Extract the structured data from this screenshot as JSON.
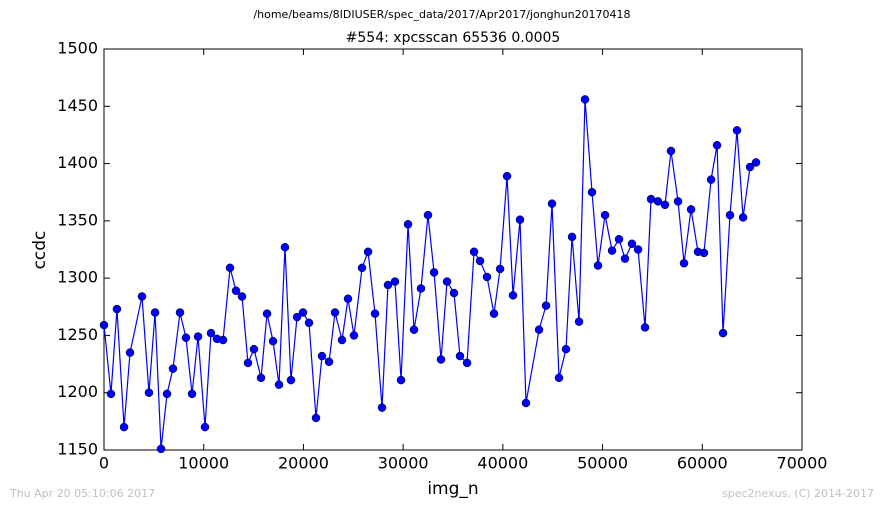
{
  "chart_data": {
    "type": "line",
    "suptitle": "/home/beams/8IDIUSER/spec_data/2017/Apr2017/jonghun20170418",
    "title": "#554: xpcsscan 65536 0.0005",
    "xlabel": "img_n",
    "ylabel": "ccdc",
    "footer_left": "Thu Apr 20 05:10:06 2017",
    "footer_right": "spec2nexus, (C) 2014-2017",
    "xlim": [
      0,
      70000
    ],
    "ylim": [
      1150,
      1500
    ],
    "xticks": [
      0,
      10000,
      20000,
      30000,
      40000,
      50000,
      60000,
      70000
    ],
    "yticks": [
      1150,
      1200,
      1250,
      1300,
      1350,
      1400,
      1450,
      1500
    ],
    "series": [
      {
        "color": "#0000ff",
        "x": [
          0,
          700,
          1300,
          2010,
          2610,
          3810,
          4510,
          5120,
          5720,
          6320,
          6920,
          7620,
          8220,
          8830,
          9430,
          10130,
          10730,
          11330,
          11940,
          12640,
          13240,
          13840,
          14440,
          15040,
          15750,
          16350,
          16950,
          17550,
          18150,
          18750,
          19360,
          19960,
          20560,
          21260,
          21860,
          22570,
          23170,
          23870,
          24470,
          25070,
          25880,
          26480,
          27180,
          27880,
          28480,
          29180,
          29790,
          30490,
          31090,
          31790,
          32490,
          33100,
          33800,
          34400,
          35100,
          35700,
          36410,
          37110,
          37710,
          38410,
          39110,
          39720,
          40420,
          41020,
          41720,
          42320,
          43630,
          44330,
          44930,
          45630,
          46330,
          46940,
          47640,
          48240,
          48940,
          49540,
          50250,
          50950,
          51650,
          52250,
          52950,
          53560,
          54260,
          54860,
          55560,
          56260,
          56860,
          57570,
          58170,
          58870,
          59570,
          60170,
          60880,
          61480,
          62080,
          62780,
          63480,
          64090,
          64790,
          65390
        ],
        "values": [
          1259,
          1199,
          1273,
          1170,
          1235,
          1284,
          1200,
          1270,
          1151,
          1199,
          1221,
          1270,
          1248,
          1199,
          1249,
          1170,
          1252,
          1247,
          1246,
          1309,
          1289,
          1284,
          1226,
          1238,
          1213,
          1269,
          1245,
          1207,
          1327,
          1211,
          1266,
          1270,
          1261,
          1178,
          1232,
          1227,
          1270,
          1246,
          1282,
          1250,
          1309,
          1323,
          1269,
          1187,
          1294,
          1297,
          1211,
          1347,
          1255,
          1291,
          1355,
          1305,
          1229,
          1297,
          1287,
          1232,
          1226,
          1323,
          1315,
          1301,
          1269,
          1308,
          1389,
          1285,
          1351,
          1191,
          1255,
          1276,
          1365,
          1213,
          1238,
          1336,
          1262,
          1456,
          1375,
          1311,
          1355,
          1324,
          1334,
          1317,
          1330,
          1325,
          1257,
          1369,
          1367,
          1364,
          1411,
          1367,
          1313,
          1360,
          1323,
          1322,
          1386,
          1416,
          1252,
          1355,
          1429,
          1353,
          1397,
          1401
        ]
      }
    ]
  }
}
